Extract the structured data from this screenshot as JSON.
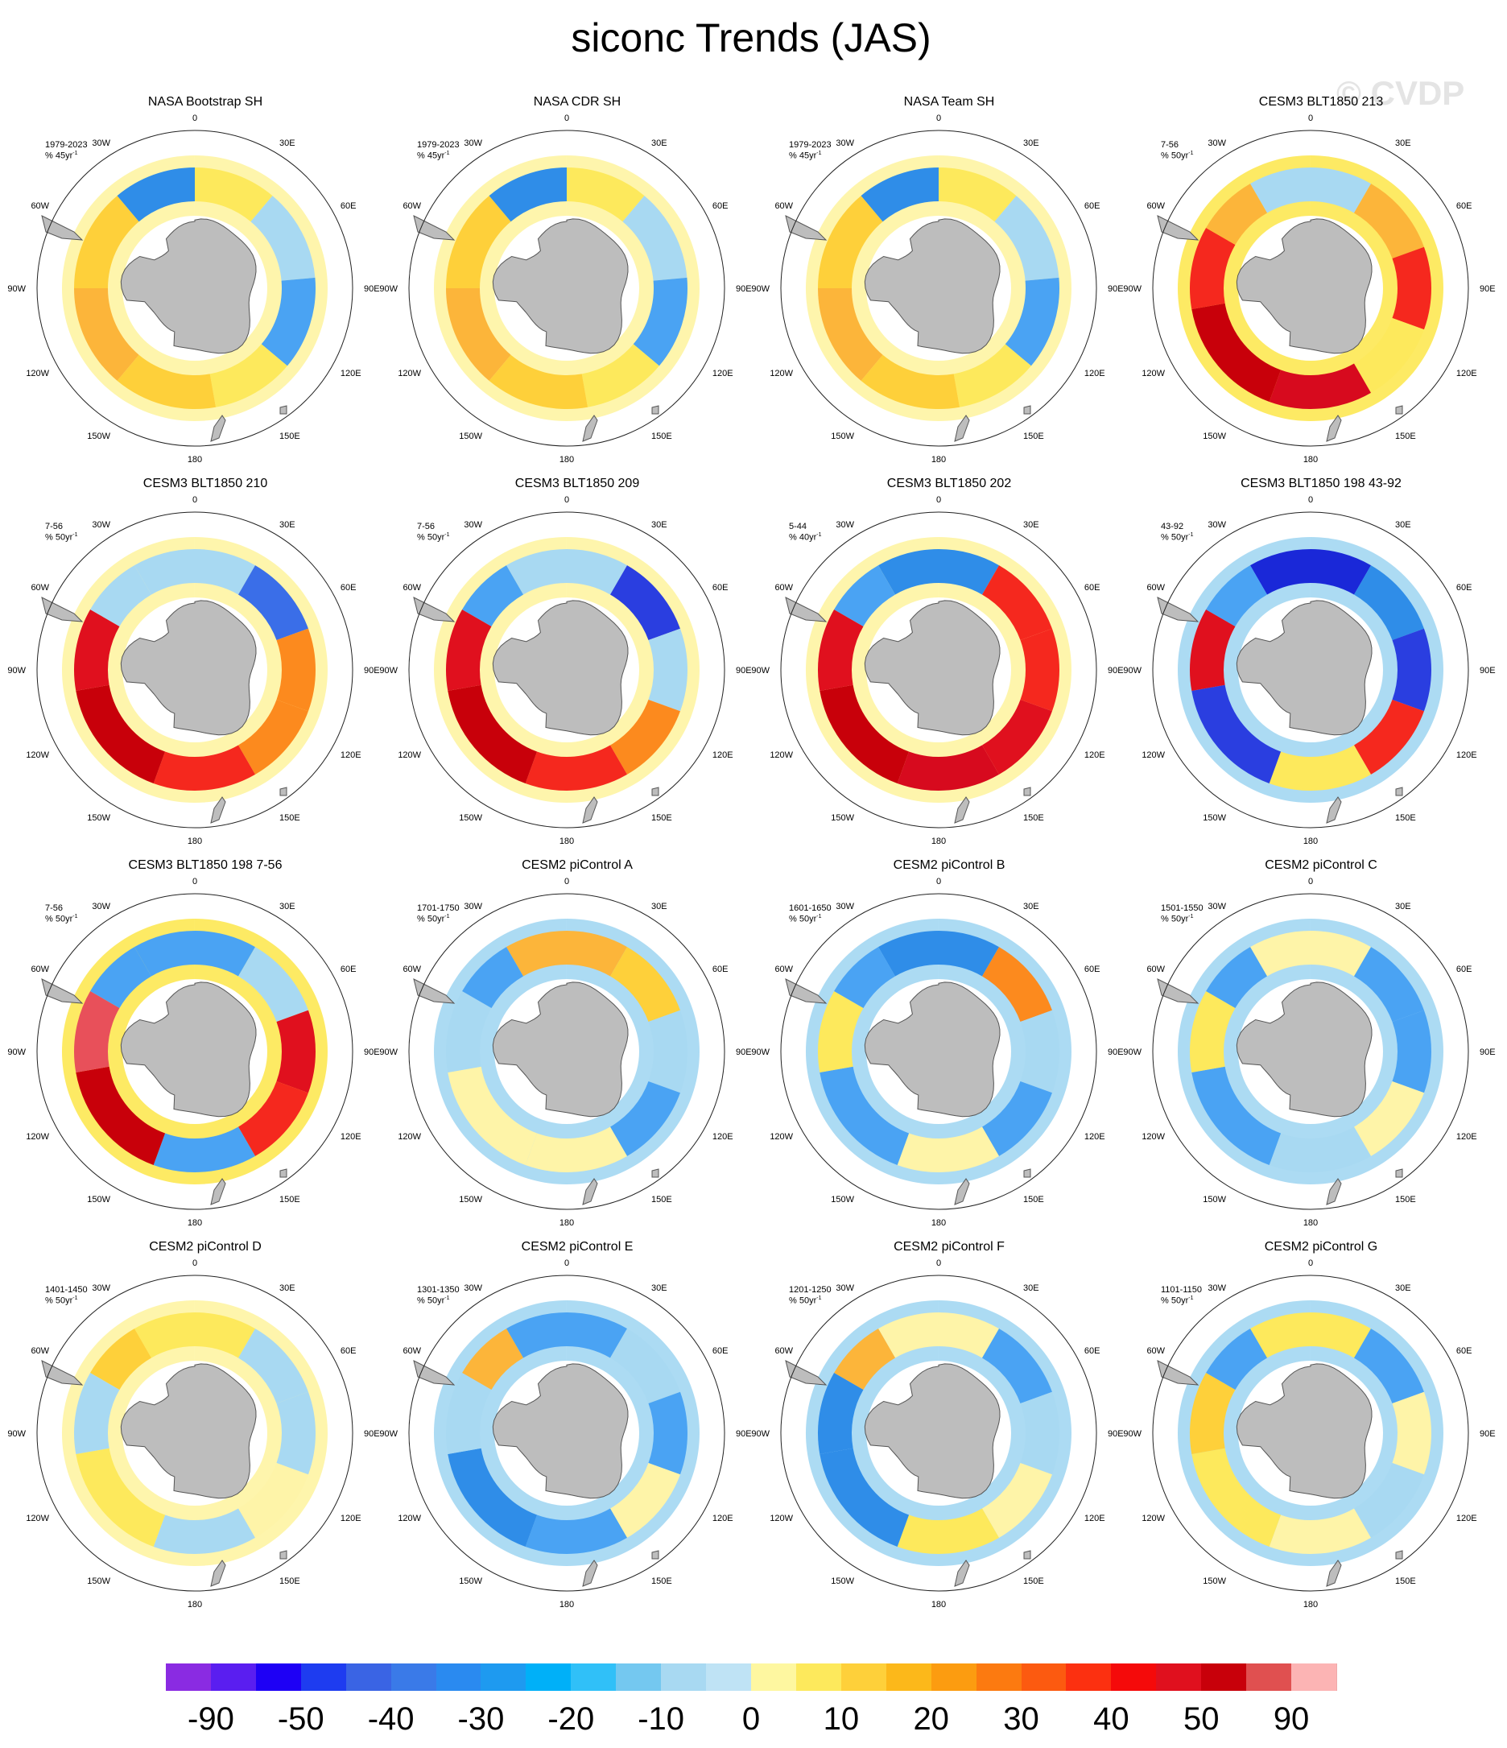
{
  "title": "siconc Trends (JAS)",
  "watermark": "© CVDP",
  "map": {
    "projection": "south-polar-stereographic",
    "longitude_labels": [
      "0",
      "30E",
      "60E",
      "90E",
      "120E",
      "150E",
      "180",
      "150W",
      "120W",
      "90W",
      "60W",
      "30W"
    ]
  },
  "panels": [
    {
      "name": "NASA Bootstrap SH",
      "period": "1979-2023",
      "units": "% 45yr",
      "units_exp": "-1",
      "ring_color": "#fef4a8",
      "patches": [
        {
          "lon": 0,
          "width": 40,
          "color": "#fde95c"
        },
        {
          "lon": 40,
          "width": 45,
          "color": "#a8d9f2"
        },
        {
          "lon": 85,
          "width": 45,
          "color": "#4aa3f3"
        },
        {
          "lon": 130,
          "width": 40,
          "color": "#fde95c"
        },
        {
          "lon": 170,
          "width": 50,
          "color": "#fed03a"
        },
        {
          "lon": 220,
          "width": 50,
          "color": "#fcb53a"
        },
        {
          "lon": 270,
          "width": 50,
          "color": "#fed03a"
        },
        {
          "lon": 320,
          "width": 40,
          "color": "#2f8de8"
        }
      ]
    },
    {
      "name": "NASA CDR SH",
      "period": "1979-2023",
      "units": "% 45yr",
      "units_exp": "-1",
      "ring_color": "#fef4a8",
      "patches": [
        {
          "lon": 0,
          "width": 40,
          "color": "#fde95c"
        },
        {
          "lon": 40,
          "width": 45,
          "color": "#a8d9f2"
        },
        {
          "lon": 85,
          "width": 45,
          "color": "#4aa3f3"
        },
        {
          "lon": 130,
          "width": 40,
          "color": "#fde95c"
        },
        {
          "lon": 170,
          "width": 50,
          "color": "#fed03a"
        },
        {
          "lon": 220,
          "width": 50,
          "color": "#fcb53a"
        },
        {
          "lon": 270,
          "width": 50,
          "color": "#fed03a"
        },
        {
          "lon": 320,
          "width": 40,
          "color": "#2f8de8"
        }
      ]
    },
    {
      "name": "NASA Team SH",
      "period": "1979-2023",
      "units": "% 45yr",
      "units_exp": "-1",
      "ring_color": "#fef4a8",
      "patches": [
        {
          "lon": 0,
          "width": 40,
          "color": "#fde95c"
        },
        {
          "lon": 40,
          "width": 45,
          "color": "#a8d9f2"
        },
        {
          "lon": 85,
          "width": 45,
          "color": "#4aa3f3"
        },
        {
          "lon": 130,
          "width": 40,
          "color": "#fde95c"
        },
        {
          "lon": 170,
          "width": 50,
          "color": "#fed03a"
        },
        {
          "lon": 220,
          "width": 50,
          "color": "#fcb53a"
        },
        {
          "lon": 270,
          "width": 50,
          "color": "#fed03a"
        },
        {
          "lon": 320,
          "width": 40,
          "color": "#2f8de8"
        }
      ]
    },
    {
      "name": "CESM3 BLT1850 213",
      "period": "7-56",
      "units": "% 50yr",
      "units_exp": "-1",
      "ring_color": "#fde95c",
      "patches": [
        {
          "lon": 330,
          "width": 60,
          "color": "#a8d9f2"
        },
        {
          "lon": 30,
          "width": 40,
          "color": "#fcb53a"
        },
        {
          "lon": 70,
          "width": 40,
          "color": "#f5281e"
        },
        {
          "lon": 110,
          "width": 40,
          "color": "#fde95c"
        },
        {
          "lon": 150,
          "width": 50,
          "color": "#d70a1e"
        },
        {
          "lon": 200,
          "width": 60,
          "color": "#c8000a"
        },
        {
          "lon": 260,
          "width": 40,
          "color": "#f5281e"
        },
        {
          "lon": 300,
          "width": 30,
          "color": "#fcb53a"
        }
      ]
    },
    {
      "name": "CESM3 BLT1850 210",
      "period": "7-56",
      "units": "% 50yr",
      "units_exp": "-1",
      "ring_color": "#fef4a8",
      "patches": [
        {
          "lon": 330,
          "width": 60,
          "color": "#a8d9f2"
        },
        {
          "lon": 30,
          "width": 40,
          "color": "#3a6ee8"
        },
        {
          "lon": 70,
          "width": 40,
          "color": "#fc8a1e"
        },
        {
          "lon": 110,
          "width": 40,
          "color": "#fc8a1e"
        },
        {
          "lon": 150,
          "width": 50,
          "color": "#f5281e"
        },
        {
          "lon": 200,
          "width": 60,
          "color": "#c8000a"
        },
        {
          "lon": 260,
          "width": 40,
          "color": "#e0101e"
        },
        {
          "lon": 300,
          "width": 30,
          "color": "#a8d9f2"
        }
      ]
    },
    {
      "name": "CESM3 BLT1850 209",
      "period": "7-56",
      "units": "% 50yr",
      "units_exp": "-1",
      "ring_color": "#fef4a8",
      "patches": [
        {
          "lon": 330,
          "width": 60,
          "color": "#a8d9f2"
        },
        {
          "lon": 30,
          "width": 40,
          "color": "#2a3ee0"
        },
        {
          "lon": 70,
          "width": 40,
          "color": "#a8d9f2"
        },
        {
          "lon": 110,
          "width": 40,
          "color": "#fc8a1e"
        },
        {
          "lon": 150,
          "width": 50,
          "color": "#f5281e"
        },
        {
          "lon": 200,
          "width": 60,
          "color": "#c8000a"
        },
        {
          "lon": 260,
          "width": 40,
          "color": "#e0101e"
        },
        {
          "lon": 300,
          "width": 30,
          "color": "#4aa3f3"
        }
      ]
    },
    {
      "name": "CESM3 BLT1850 202",
      "period": "5-44",
      "units": "% 40yr",
      "units_exp": "-1",
      "ring_color": "#fef4a8",
      "patches": [
        {
          "lon": 330,
          "width": 60,
          "color": "#2f8de8"
        },
        {
          "lon": 30,
          "width": 40,
          "color": "#f5281e"
        },
        {
          "lon": 70,
          "width": 40,
          "color": "#f5281e"
        },
        {
          "lon": 110,
          "width": 40,
          "color": "#e0101e"
        },
        {
          "lon": 150,
          "width": 50,
          "color": "#d70a1e"
        },
        {
          "lon": 200,
          "width": 60,
          "color": "#c8000a"
        },
        {
          "lon": 260,
          "width": 40,
          "color": "#e0101e"
        },
        {
          "lon": 300,
          "width": 30,
          "color": "#4aa3f3"
        }
      ]
    },
    {
      "name": "CESM3 BLT1850 198 43-92",
      "period": "43-92",
      "units": "% 50yr",
      "units_exp": "-1",
      "ring_color": "#a8d9f2",
      "patches": [
        {
          "lon": 330,
          "width": 60,
          "color": "#1a28d8"
        },
        {
          "lon": 30,
          "width": 40,
          "color": "#2f8de8"
        },
        {
          "lon": 70,
          "width": 40,
          "color": "#2a3ee0"
        },
        {
          "lon": 110,
          "width": 40,
          "color": "#f5281e"
        },
        {
          "lon": 150,
          "width": 50,
          "color": "#fde95c"
        },
        {
          "lon": 200,
          "width": 60,
          "color": "#2a3ee0"
        },
        {
          "lon": 260,
          "width": 40,
          "color": "#e0101e"
        },
        {
          "lon": 300,
          "width": 30,
          "color": "#4aa3f3"
        }
      ]
    },
    {
      "name": "CESM3 BLT1850 198 7-56",
      "period": "7-56",
      "units": "% 50yr",
      "units_exp": "-1",
      "ring_color": "#fde95c",
      "patches": [
        {
          "lon": 330,
          "width": 60,
          "color": "#4aa3f3"
        },
        {
          "lon": 30,
          "width": 40,
          "color": "#a8d9f2"
        },
        {
          "lon": 70,
          "width": 40,
          "color": "#e0101e"
        },
        {
          "lon": 110,
          "width": 40,
          "color": "#f5281e"
        },
        {
          "lon": 150,
          "width": 50,
          "color": "#4aa3f3"
        },
        {
          "lon": 200,
          "width": 60,
          "color": "#c8000a"
        },
        {
          "lon": 260,
          "width": 40,
          "color": "#e8505a"
        },
        {
          "lon": 300,
          "width": 30,
          "color": "#4aa3f3"
        }
      ]
    },
    {
      "name": "CESM2 piControl A",
      "period": "1701-1750",
      "units": "% 50yr",
      "units_exp": "-1",
      "ring_color": "#a8d9f2",
      "patches": [
        {
          "lon": 330,
          "width": 60,
          "color": "#fcb53a"
        },
        {
          "lon": 30,
          "width": 40,
          "color": "#fed03a"
        },
        {
          "lon": 70,
          "width": 40,
          "color": "#a8d9f2"
        },
        {
          "lon": 110,
          "width": 40,
          "color": "#4aa3f3"
        },
        {
          "lon": 150,
          "width": 50,
          "color": "#fef4a8"
        },
        {
          "lon": 200,
          "width": 60,
          "color": "#fef4a8"
        },
        {
          "lon": 260,
          "width": 40,
          "color": "#a8d9f2"
        },
        {
          "lon": 300,
          "width": 30,
          "color": "#4aa3f3"
        }
      ]
    },
    {
      "name": "CESM2 piControl B",
      "period": "1601-1650",
      "units": "% 50yr",
      "units_exp": "-1",
      "ring_color": "#a8d9f2",
      "patches": [
        {
          "lon": 330,
          "width": 60,
          "color": "#2f8de8"
        },
        {
          "lon": 30,
          "width": 40,
          "color": "#fc8a1e"
        },
        {
          "lon": 70,
          "width": 40,
          "color": "#a8d9f2"
        },
        {
          "lon": 110,
          "width": 40,
          "color": "#4aa3f3"
        },
        {
          "lon": 150,
          "width": 50,
          "color": "#fef4a8"
        },
        {
          "lon": 200,
          "width": 60,
          "color": "#4aa3f3"
        },
        {
          "lon": 260,
          "width": 40,
          "color": "#fde95c"
        },
        {
          "lon": 300,
          "width": 30,
          "color": "#4aa3f3"
        }
      ]
    },
    {
      "name": "CESM2 piControl C",
      "period": "1501-1550",
      "units": "% 50yr",
      "units_exp": "-1",
      "ring_color": "#a8d9f2",
      "patches": [
        {
          "lon": 330,
          "width": 60,
          "color": "#fef4a8"
        },
        {
          "lon": 30,
          "width": 40,
          "color": "#4aa3f3"
        },
        {
          "lon": 70,
          "width": 40,
          "color": "#4aa3f3"
        },
        {
          "lon": 110,
          "width": 40,
          "color": "#fef4a8"
        },
        {
          "lon": 150,
          "width": 50,
          "color": "#a8d9f2"
        },
        {
          "lon": 200,
          "width": 60,
          "color": "#4aa3f3"
        },
        {
          "lon": 260,
          "width": 40,
          "color": "#fde95c"
        },
        {
          "lon": 300,
          "width": 30,
          "color": "#4aa3f3"
        }
      ]
    },
    {
      "name": "CESM2 piControl D",
      "period": "1401-1450",
      "units": "% 50yr",
      "units_exp": "-1",
      "ring_color": "#fef4a8",
      "patches": [
        {
          "lon": 330,
          "width": 60,
          "color": "#fde95c"
        },
        {
          "lon": 30,
          "width": 40,
          "color": "#a8d9f2"
        },
        {
          "lon": 70,
          "width": 40,
          "color": "#a8d9f2"
        },
        {
          "lon": 110,
          "width": 40,
          "color": "#fef4a8"
        },
        {
          "lon": 150,
          "width": 50,
          "color": "#a8d9f2"
        },
        {
          "lon": 200,
          "width": 60,
          "color": "#fde95c"
        },
        {
          "lon": 260,
          "width": 40,
          "color": "#a8d9f2"
        },
        {
          "lon": 300,
          "width": 30,
          "color": "#fed03a"
        }
      ]
    },
    {
      "name": "CESM2 piControl E",
      "period": "1301-1350",
      "units": "% 50yr",
      "units_exp": "-1",
      "ring_color": "#a8d9f2",
      "patches": [
        {
          "lon": 330,
          "width": 60,
          "color": "#4aa3f3"
        },
        {
          "lon": 30,
          "width": 40,
          "color": "#a8d9f2"
        },
        {
          "lon": 70,
          "width": 40,
          "color": "#4aa3f3"
        },
        {
          "lon": 110,
          "width": 40,
          "color": "#fef4a8"
        },
        {
          "lon": 150,
          "width": 50,
          "color": "#4aa3f3"
        },
        {
          "lon": 200,
          "width": 60,
          "color": "#2f8de8"
        },
        {
          "lon": 260,
          "width": 40,
          "color": "#a8d9f2"
        },
        {
          "lon": 300,
          "width": 30,
          "color": "#fcb53a"
        }
      ]
    },
    {
      "name": "CESM2 piControl F",
      "period": "1201-1250",
      "units": "% 50yr",
      "units_exp": "-1",
      "ring_color": "#a8d9f2",
      "patches": [
        {
          "lon": 330,
          "width": 60,
          "color": "#fef4a8"
        },
        {
          "lon": 30,
          "width": 40,
          "color": "#4aa3f3"
        },
        {
          "lon": 70,
          "width": 40,
          "color": "#a8d9f2"
        },
        {
          "lon": 110,
          "width": 40,
          "color": "#fef4a8"
        },
        {
          "lon": 150,
          "width": 50,
          "color": "#fde95c"
        },
        {
          "lon": 200,
          "width": 60,
          "color": "#2f8de8"
        },
        {
          "lon": 260,
          "width": 40,
          "color": "#2f8de8"
        },
        {
          "lon": 300,
          "width": 30,
          "color": "#fcb53a"
        }
      ]
    },
    {
      "name": "CESM2 piControl G",
      "period": "1101-1150",
      "units": "% 50yr",
      "units_exp": "-1",
      "ring_color": "#a8d9f2",
      "patches": [
        {
          "lon": 330,
          "width": 60,
          "color": "#fde95c"
        },
        {
          "lon": 30,
          "width": 40,
          "color": "#4aa3f3"
        },
        {
          "lon": 70,
          "width": 40,
          "color": "#fef4a8"
        },
        {
          "lon": 110,
          "width": 40,
          "color": "#a8d9f2"
        },
        {
          "lon": 150,
          "width": 50,
          "color": "#fef4a8"
        },
        {
          "lon": 200,
          "width": 60,
          "color": "#fde95c"
        },
        {
          "lon": 260,
          "width": 40,
          "color": "#fed03a"
        },
        {
          "lon": 300,
          "width": 30,
          "color": "#4aa3f3"
        }
      ]
    }
  ],
  "colorbar": {
    "colors": [
      "#8a2be2",
      "#5a1ef0",
      "#1e00f5",
      "#1e3cf0",
      "#3a64e4",
      "#3a7ae8",
      "#2a8af0",
      "#1e9af0",
      "#00b0f8",
      "#30c0f8",
      "#74c8f0",
      "#a8d9f2",
      "#bfe3f5",
      "#fef7a0",
      "#fde95c",
      "#fed03a",
      "#fcb81a",
      "#fc9c10",
      "#fc7a10",
      "#fc5a10",
      "#fc3010",
      "#f50a0a",
      "#e0101e",
      "#c8000a",
      "#e05050",
      "#fcb4b4"
    ],
    "labels": [
      "-90",
      "-50",
      "-40",
      "-30",
      "-20",
      "-10",
      "0",
      "10",
      "20",
      "30",
      "40",
      "50",
      "90"
    ]
  }
}
